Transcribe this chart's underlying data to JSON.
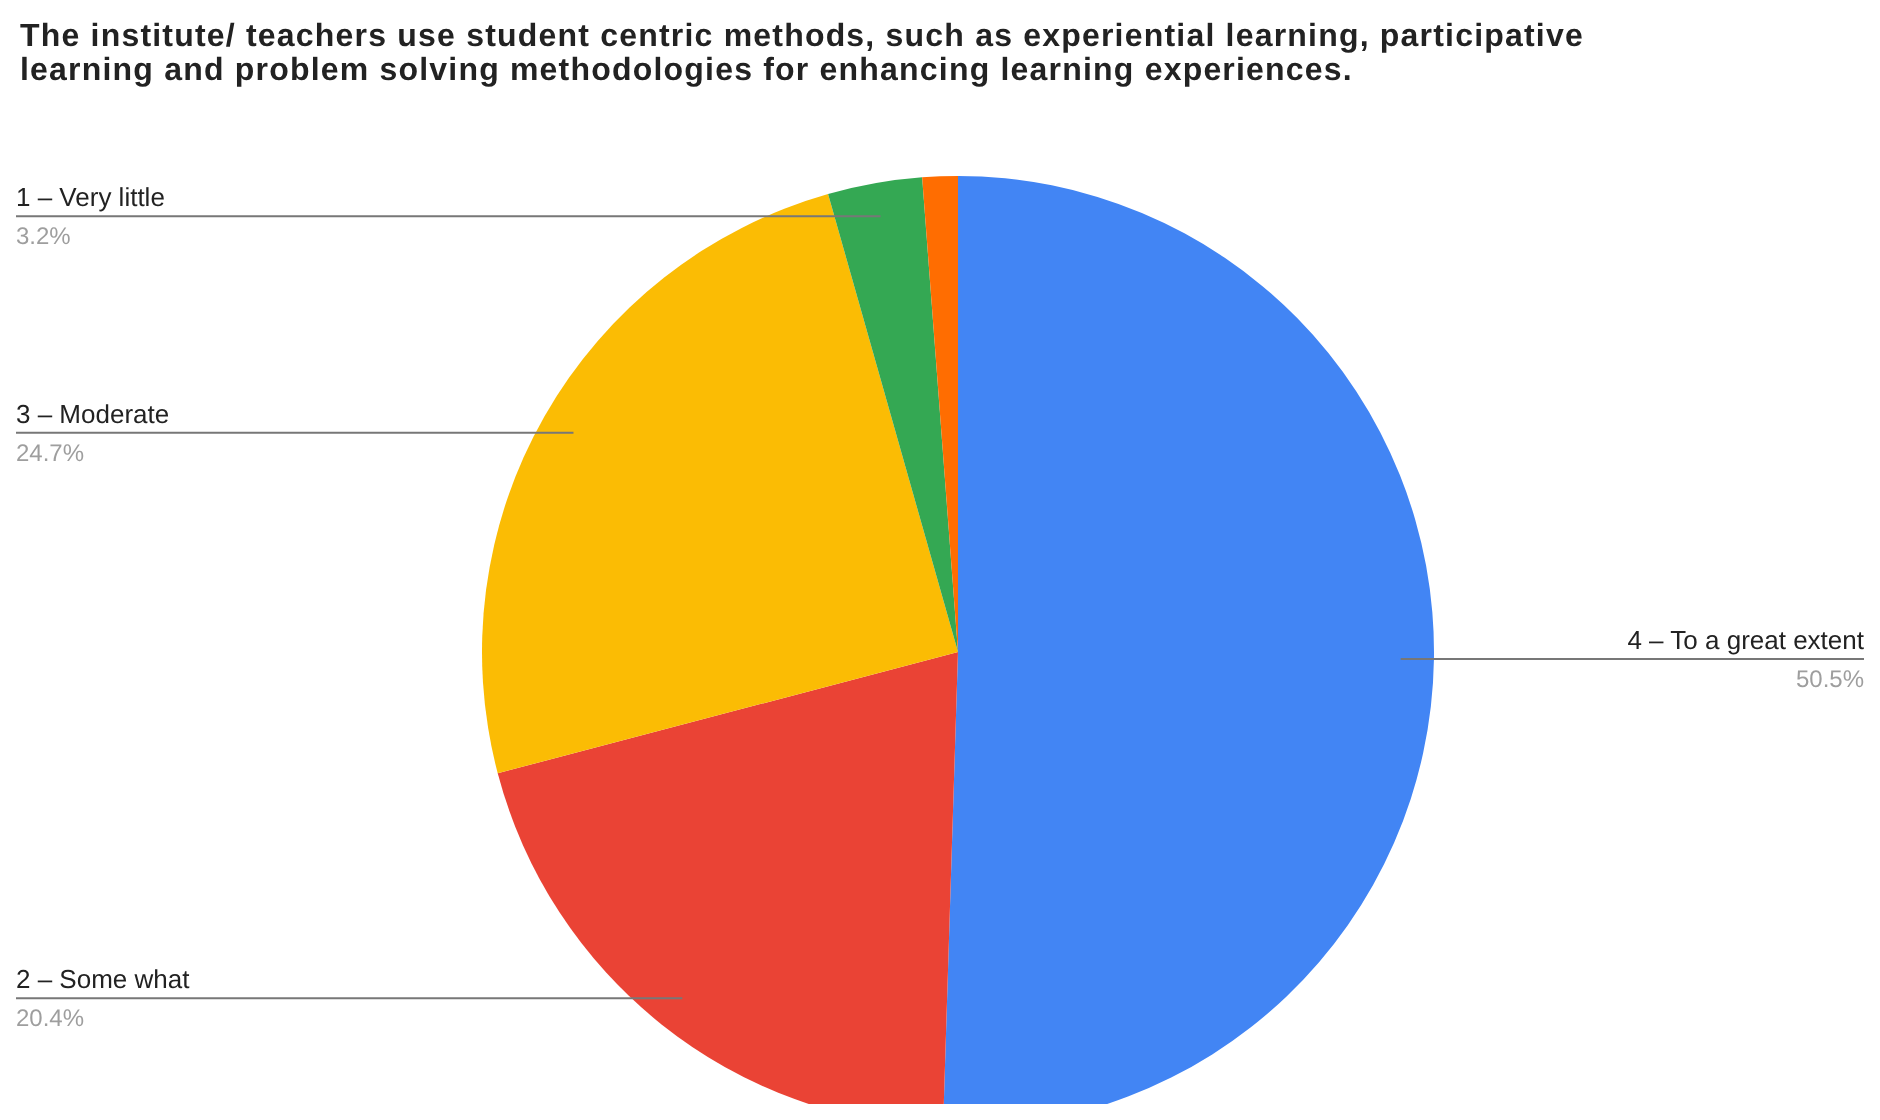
{
  "chart_data": {
    "type": "pie",
    "title": "The institute/ teachers use student centric methods, such as experiential learning, participative learning and problem solving methodologies for enhancing learning experiences.",
    "categories": [
      "4 – To a great extent",
      "2 – Some what",
      "3 – Moderate",
      "1 – Very little",
      null
    ],
    "values": [
      50.5,
      20.4,
      24.7,
      3.2,
      1.2
    ],
    "colors": [
      "#4285f4",
      "#ea4335",
      "#fbbc04",
      "#34a853",
      "#ff6d01"
    ],
    "value_labels": [
      "50.5%",
      "20.4%",
      "24.7%",
      "3.2%",
      null
    ]
  }
}
